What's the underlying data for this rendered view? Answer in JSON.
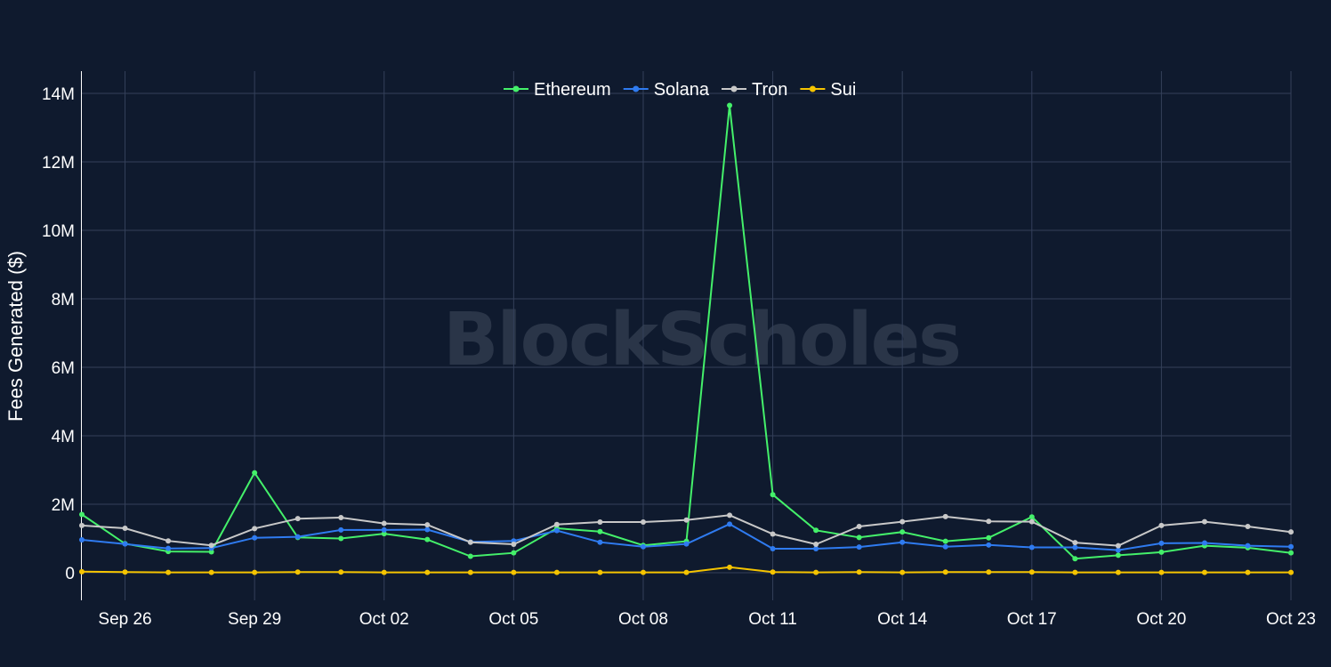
{
  "chart_data": {
    "type": "line",
    "title": "",
    "xlabel": "",
    "ylabel": "Fees Generated ($)",
    "watermark": "BlockScholes",
    "legend_position": "top-center",
    "grid": true,
    "ylim": [
      -800000,
      14600000
    ],
    "y_ticks": [
      {
        "value": 0,
        "label": "0"
      },
      {
        "value": 2000000,
        "label": "2M"
      },
      {
        "value": 4000000,
        "label": "4M"
      },
      {
        "value": 6000000,
        "label": "6M"
      },
      {
        "value": 8000000,
        "label": "8M"
      },
      {
        "value": 10000000,
        "label": "10M"
      },
      {
        "value": 12000000,
        "label": "12M"
      },
      {
        "value": 14000000,
        "label": "14M"
      }
    ],
    "x_ticks": [
      {
        "index": 1,
        "label": "Sep 26"
      },
      {
        "index": 4,
        "label": "Sep 29"
      },
      {
        "index": 7,
        "label": "Oct 02"
      },
      {
        "index": 10,
        "label": "Oct 05"
      },
      {
        "index": 13,
        "label": "Oct 08"
      },
      {
        "index": 16,
        "label": "Oct 11"
      },
      {
        "index": 19,
        "label": "Oct 14"
      },
      {
        "index": 22,
        "label": "Oct 17"
      },
      {
        "index": 25,
        "label": "Oct 20"
      },
      {
        "index": 28,
        "label": "Oct 23"
      }
    ],
    "x": [
      "Sep 25",
      "Sep 26",
      "Sep 27",
      "Sep 28",
      "Sep 29",
      "Sep 30",
      "Oct 01",
      "Oct 02",
      "Oct 03",
      "Oct 04",
      "Oct 05",
      "Oct 06",
      "Oct 07",
      "Oct 08",
      "Oct 09",
      "Oct 10",
      "Oct 11",
      "Oct 12",
      "Oct 13",
      "Oct 14",
      "Oct 15",
      "Oct 16",
      "Oct 17",
      "Oct 18",
      "Oct 19",
      "Oct 20",
      "Oct 21",
      "Oct 22",
      "Oct 23"
    ],
    "series": [
      {
        "name": "Ethereum",
        "color": "#44f06a",
        "values": [
          1700000,
          850000,
          620000,
          610000,
          2920000,
          1030000,
          1000000,
          1140000,
          970000,
          480000,
          580000,
          1300000,
          1200000,
          800000,
          920000,
          13650000,
          2280000,
          1240000,
          1030000,
          1190000,
          920000,
          1020000,
          1630000,
          410000,
          510000,
          600000,
          790000,
          730000,
          580000
        ]
      },
      {
        "name": "Solana",
        "color": "#2f7bf0",
        "values": [
          960000,
          840000,
          710000,
          720000,
          1020000,
          1050000,
          1250000,
          1250000,
          1260000,
          900000,
          930000,
          1230000,
          890000,
          760000,
          840000,
          1420000,
          700000,
          700000,
          750000,
          890000,
          760000,
          810000,
          740000,
          740000,
          660000,
          860000,
          870000,
          790000,
          760000
        ]
      },
      {
        "name": "Tron",
        "color": "#c8c8c8",
        "values": [
          1380000,
          1300000,
          930000,
          800000,
          1290000,
          1580000,
          1610000,
          1440000,
          1400000,
          890000,
          830000,
          1410000,
          1480000,
          1480000,
          1540000,
          1680000,
          1130000,
          830000,
          1350000,
          1490000,
          1640000,
          1500000,
          1490000,
          880000,
          790000,
          1380000,
          1490000,
          1350000,
          1190000
        ]
      },
      {
        "name": "Sui",
        "color": "#f5c400",
        "values": [
          30000,
          20000,
          10000,
          10000,
          10000,
          20000,
          20000,
          10000,
          10000,
          10000,
          10000,
          10000,
          10000,
          10000,
          10000,
          160000,
          20000,
          10000,
          20000,
          10000,
          20000,
          20000,
          20000,
          10000,
          10000,
          10000,
          10000,
          10000,
          10000
        ]
      }
    ]
  }
}
